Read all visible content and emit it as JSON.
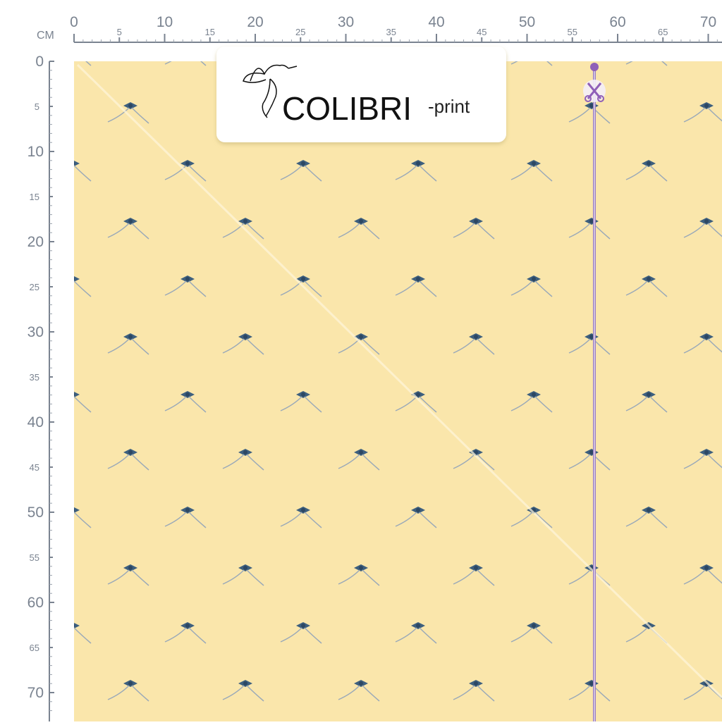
{
  "ruler": {
    "unit": "CM",
    "top": [
      0,
      5,
      10,
      15,
      20,
      25,
      30,
      35,
      40,
      45,
      50,
      55,
      60,
      65,
      70
    ],
    "left": [
      0,
      5,
      10,
      15,
      20,
      25,
      30,
      35,
      40,
      45,
      50,
      55,
      60,
      65,
      70
    ]
  },
  "logo": {
    "name": "COLIBRI",
    "suffix": "-print"
  }
}
